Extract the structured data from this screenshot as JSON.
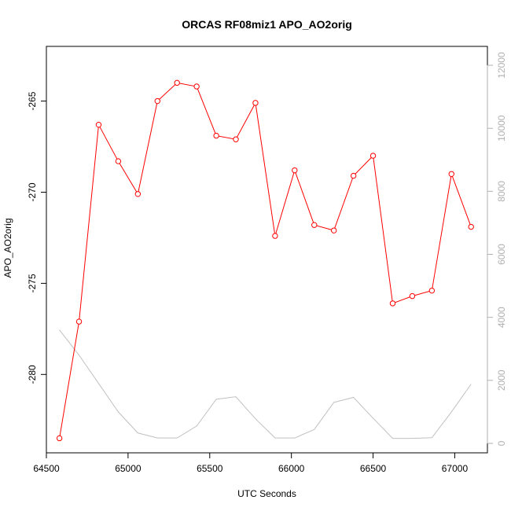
{
  "chart_data": {
    "type": "line",
    "title": "ORCAS RF08miz1 APO_AO2orig",
    "xlabel": "UTC Seconds",
    "ylabel": "APO_AO2orig",
    "xlim": [
      64500,
      67200
    ],
    "ylim": [
      -284.3,
      -262.0
    ],
    "y2lim": [
      -300,
      12600
    ],
    "x_ticks": [
      64500,
      65000,
      65500,
      66000,
      66500,
      67000
    ],
    "y_ticks": [
      -280,
      -275,
      -270,
      -265
    ],
    "y2_ticks": [
      0,
      2000,
      4000,
      6000,
      8000,
      10000,
      12000
    ],
    "grid": false,
    "colors": {
      "primary": "#ff0000",
      "secondary": "#c0c0c0",
      "axis": "#000000",
      "right_axis": "#b0b0b0"
    },
    "series": [
      {
        "axis": "left",
        "color": "#ff0000",
        "markers": true,
        "x": [
          64580,
          64700,
          64820,
          64940,
          65060,
          65180,
          65300,
          65420,
          65540,
          65660,
          65780,
          65900,
          66020,
          66140,
          66260,
          66380,
          66500,
          66620,
          66740,
          66860,
          66980,
          67100
        ],
        "y": [
          -283.5,
          -277.1,
          -266.3,
          -268.3,
          -270.1,
          -265.0,
          -264.0,
          -264.2,
          -266.9,
          -267.1,
          -265.1,
          -272.4,
          -268.8,
          -271.8,
          -272.1,
          -269.1,
          -268.0,
          -276.1,
          -275.7,
          -275.4,
          -269.0,
          -271.9
        ]
      },
      {
        "axis": "right",
        "color": "#c0c0c0",
        "markers": false,
        "x": [
          64580,
          64700,
          64820,
          64940,
          65060,
          65180,
          65300,
          65420,
          65540,
          65660,
          65780,
          65900,
          66020,
          66140,
          66260,
          66380,
          66500,
          66620,
          66740,
          66860,
          66980,
          67100
        ],
        "y": [
          3600,
          2800,
          1900,
          1000,
          330,
          170,
          170,
          550,
          1400,
          1480,
          780,
          170,
          170,
          440,
          1300,
          1460,
          800,
          160,
          160,
          180,
          1000,
          1880
        ]
      }
    ]
  }
}
